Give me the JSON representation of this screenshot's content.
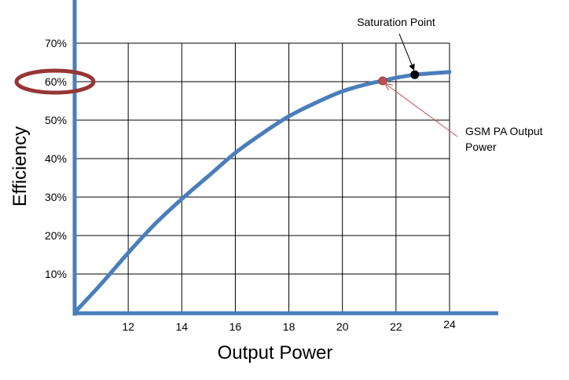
{
  "chart_data": {
    "type": "line",
    "xlabel": "Output Power",
    "ylabel": "Efficiency",
    "xlim": [
      10,
      24
    ],
    "ylim": [
      0,
      70
    ],
    "x_ticks": [
      12,
      14,
      16,
      18,
      20,
      22,
      24
    ],
    "x_tick_labels": [
      "12",
      "14",
      "16",
      "18",
      "20",
      "22",
      "24"
    ],
    "y_ticks": [
      10,
      20,
      30,
      40,
      50,
      60,
      70
    ],
    "y_tick_labels": [
      "10%",
      "20%",
      "30%",
      "40%",
      "50%",
      "60%",
      "70%"
    ],
    "grid": true,
    "series": [
      {
        "color": "#4a7ebb",
        "x": [
          10,
          11,
          12,
          13,
          14,
          15,
          16,
          17,
          18,
          19,
          20,
          21,
          21.5,
          22,
          22.7,
          23,
          24
        ],
        "y": [
          0,
          7.5,
          15.5,
          23,
          29.5,
          35.5,
          41.5,
          46.5,
          51,
          54.5,
          57.5,
          59.5,
          60.2,
          61,
          61.8,
          62,
          62.5
        ]
      }
    ],
    "points": [
      {
        "x": 21.5,
        "y": 60.2,
        "color": "#c0504d"
      },
      {
        "x": 22.7,
        "y": 61.8,
        "color": "#000000"
      }
    ],
    "annotations": [
      {
        "text": "Saturation Point",
        "target_x": 22.7,
        "target_y": 61.8
      },
      {
        "text_lines": [
          "GSM PA Output",
          "Power"
        ],
        "target_x": 21.5,
        "target_y": 60.2
      }
    ],
    "highlight": {
      "tick": "60%",
      "color": "#953735"
    }
  }
}
